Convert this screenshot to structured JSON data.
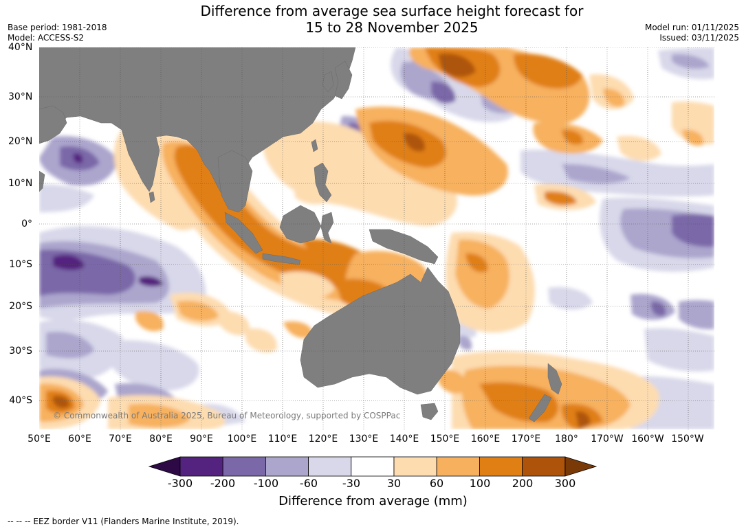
{
  "header": {
    "title_line1": "Difference from average sea surface height forecast for",
    "title_line2": "15 to 28 November 2025",
    "base_period": "Base period: 1981-2018",
    "model": "Model: ACCESS-S2",
    "model_run": "Model run: 01/11/2025",
    "issued": "Issued: 03/11/2025"
  },
  "map": {
    "lat_labels": [
      "40°N",
      "30°N",
      "20°N",
      "10°N",
      "0°",
      "10°S",
      "20°S",
      "30°S",
      "40°S"
    ],
    "lon_labels": [
      "50°E",
      "60°E",
      "70°E",
      "80°E",
      "90°E",
      "100°E",
      "110°E",
      "120°E",
      "130°E",
      "140°E",
      "150°E",
      "160°E",
      "170°E",
      "180°",
      "170°W",
      "160°W",
      "150°W"
    ],
    "copyright": "© Commonwealth of Australia 2025, Bureau of Meteorology, supported by COSPPac"
  },
  "colorbar": {
    "ticks": [
      "-300",
      "-200",
      "-100",
      "-60",
      "-30",
      "30",
      "60",
      "100",
      "200",
      "300"
    ],
    "label": "Difference from average (mm)",
    "colors": [
      "#2d0a45",
      "#54237f",
      "#7a68a8",
      "#aca6cd",
      "#d8d8ea",
      "#ffffff",
      "#fddcb0",
      "#f7b15e",
      "#e07f14",
      "#ae540a",
      "#7a3a08"
    ]
  },
  "footer": {
    "eez_note": "--  --  -- EEZ border V11 (Flanders Marine Institute, 2019)."
  }
}
